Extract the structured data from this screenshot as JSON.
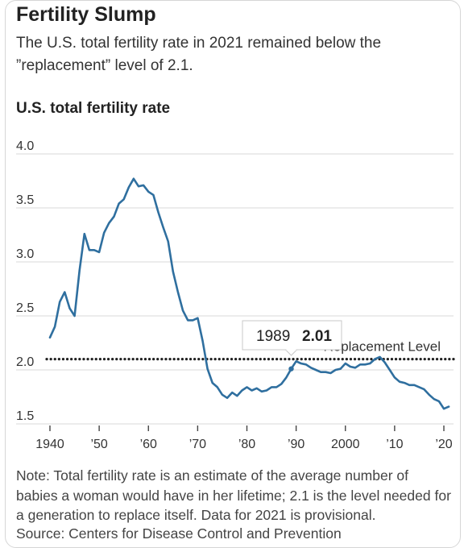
{
  "header": {
    "title": "Fertility Slump",
    "subtitle": "The U.S. total fertility rate in 2021 remained below the ”replacement” level of 2.1."
  },
  "chart": {
    "title": "U.S. total fertility rate",
    "tooltip_year": "1989",
    "tooltip_value": "2.01",
    "reference_label": "Replacement Level",
    "line_color": "#2f6f9f",
    "reference_color": "#222222"
  },
  "footer": {
    "note": "Note: Total fertility rate is an estimate of the average number of babies a woman would have in her lifetime; 2.1 is the level needed for a generation to replace itself. Data for 2021 is provisional.",
    "source": "Source: Centers for Disease Control and Prevention"
  },
  "chart_data": {
    "type": "line",
    "title": "U.S. total fertility rate",
    "xlabel": "",
    "ylabel": "",
    "xlim": [
      1940,
      2021
    ],
    "ylim": [
      1.5,
      4.0
    ],
    "y_ticks": [
      4.0,
      3.5,
      3.0,
      2.5,
      2.0,
      1.5
    ],
    "y_tick_labels": [
      "4.0",
      "3.5",
      "3.0",
      "2.5",
      "2.0",
      "1.5"
    ],
    "x_ticks": [
      1940,
      1950,
      1960,
      1970,
      1980,
      1990,
      2000,
      2010,
      2020
    ],
    "x_tick_labels": [
      "1940",
      "’50",
      "’60",
      "’70",
      "’80",
      "’90",
      "2000",
      "’10",
      "’20"
    ],
    "grid": true,
    "reference_line": {
      "value": 2.1,
      "label": "Replacement Level"
    },
    "highlight": {
      "x": 1989,
      "y": 2.01
    },
    "series": [
      {
        "x": [
          1940,
          1941,
          1942,
          1943,
          1944,
          1945,
          1946,
          1947,
          1948,
          1949,
          1950,
          1951,
          1952,
          1953,
          1954,
          1955,
          1956,
          1957,
          1958,
          1959,
          1960,
          1961,
          1962,
          1963,
          1964,
          1965,
          1966,
          1967,
          1968,
          1969,
          1970,
          1971,
          1972,
          1973,
          1974,
          1975,
          1976,
          1977,
          1978,
          1979,
          1980,
          1981,
          1982,
          1983,
          1984,
          1985,
          1986,
          1987,
          1988,
          1989,
          1990,
          1991,
          1992,
          1993,
          1994,
          1995,
          1996,
          1997,
          1998,
          1999,
          2000,
          2001,
          2002,
          2003,
          2004,
          2005,
          2006,
          2007,
          2008,
          2009,
          2010,
          2011,
          2012,
          2013,
          2014,
          2015,
          2016,
          2017,
          2018,
          2019,
          2020,
          2021
        ],
        "values": [
          2.3,
          2.4,
          2.63,
          2.72,
          2.57,
          2.5,
          2.92,
          3.26,
          3.11,
          3.11,
          3.09,
          3.27,
          3.36,
          3.42,
          3.54,
          3.58,
          3.69,
          3.77,
          3.7,
          3.71,
          3.65,
          3.62,
          3.46,
          3.32,
          3.19,
          2.91,
          2.72,
          2.55,
          2.46,
          2.46,
          2.48,
          2.27,
          2.01,
          1.88,
          1.84,
          1.77,
          1.74,
          1.79,
          1.76,
          1.81,
          1.84,
          1.81,
          1.83,
          1.8,
          1.81,
          1.84,
          1.84,
          1.87,
          1.93,
          2.01,
          2.08,
          2.06,
          2.05,
          2.02,
          2.0,
          1.98,
          1.98,
          1.97,
          2.0,
          2.01,
          2.06,
          2.03,
          2.02,
          2.05,
          2.05,
          2.06,
          2.1,
          2.12,
          2.07,
          2.0,
          1.93,
          1.89,
          1.88,
          1.86,
          1.86,
          1.84,
          1.82,
          1.77,
          1.73,
          1.71,
          1.64,
          1.66
        ]
      }
    ]
  }
}
